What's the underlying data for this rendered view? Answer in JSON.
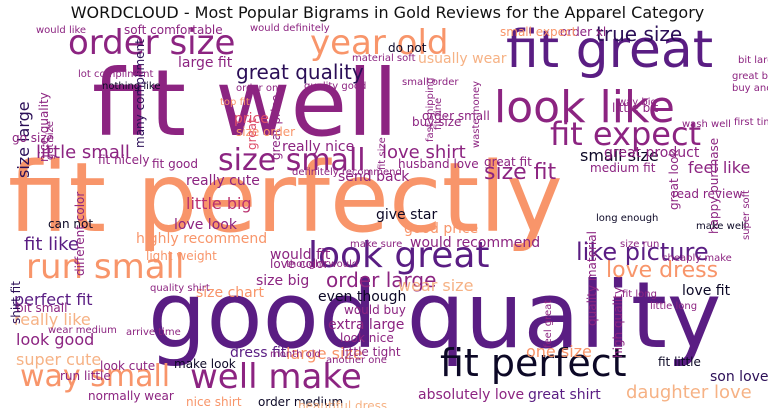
{
  "title": "WORDCLOUD - Most Popular Bigrams in Gold Reviews for the Apparel Category",
  "words": [
    "fit perfectly",
    "good quality",
    "fit well",
    "fit great",
    "look like",
    "fit perfect",
    "well make",
    "order size",
    "year old",
    "look great",
    "run small",
    "fit expect",
    "size small",
    "way small",
    "true size",
    "great quality",
    "love dress",
    "size fit",
    "love shirt",
    "little small",
    "size large",
    "nice quality",
    "would recommend",
    "like picture",
    "order large",
    "small size",
    "great product",
    "fit like",
    "perfect fit",
    "look good",
    "super cute",
    "really like",
    "absolutely love",
    "great shirt",
    "daughter love",
    "one size",
    "dress fit",
    "large size",
    "size big",
    "wear size",
    "love fit",
    "feel like",
    "love look",
    "highly recommend",
    "little big",
    "really cute",
    "love color",
    "even though",
    "would buy",
    "extra large",
    "look nice",
    "little tight",
    "send back",
    "give star",
    "good price",
    "make look",
    "son love",
    "fit little",
    "run little",
    "normally wear",
    "order medium",
    "nice shirt",
    "bit small",
    "buy size",
    "large fit",
    "soft comfortable",
    "usually wear",
    "do not",
    "order xl",
    "little bit",
    "great buy",
    "bit large",
    "small expect",
    "would definitely",
    "would like",
    "material soft",
    "fit nicely",
    "nothing like",
    "many compliment",
    "top fit",
    "great price",
    "really nice",
    "size order",
    "fit good",
    "go size",
    "get size",
    "shirt fit",
    "size chart",
    "quality shirt",
    "can not",
    "different color",
    "light weight",
    "would fit",
    "thought would",
    "make sure",
    "order one",
    "quality good",
    "medium fit",
    "long enough",
    "happy purchase",
    "great look",
    "cheaply make",
    "make well",
    "read review",
    "size run",
    "first time",
    "wash well",
    "buy another",
    "way big",
    "fast shipping",
    "waste money",
    "husband love",
    "fit fine",
    "great fit",
    "wear medium",
    "arrive time",
    "month old",
    "another one",
    "feel great",
    "quality material",
    "high quality",
    "fit long",
    "little long",
    "fit size",
    "order small",
    "definitely recommend",
    "super soft",
    "lot compliment",
    "small order",
    "beautiful dress",
    "look cute",
    "price",
    "great"
  ]
}
